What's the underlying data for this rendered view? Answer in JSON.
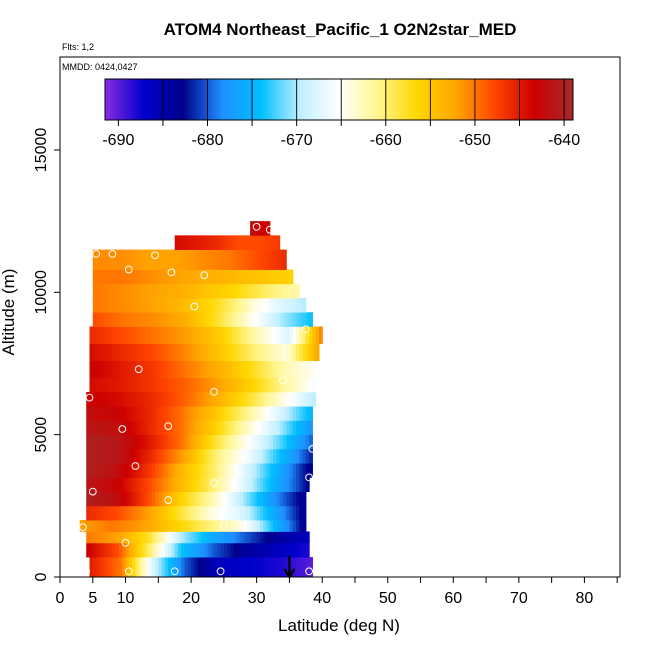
{
  "chart_data": {
    "type": "heatmap",
    "title": "ATOM4 Northeast_Pacific_1 O2N2star_MED",
    "flights_label": "Flts: 1,2",
    "mmdd_label": "MMDD: 0424,0427",
    "xlabel": "Latitude (deg N)",
    "ylabel": "Altitude (m)",
    "xlim": [
      0,
      85
    ],
    "ylim": [
      0,
      17500
    ],
    "x_ticks": [
      0,
      5,
      10,
      20,
      30,
      40,
      50,
      60,
      70,
      80
    ],
    "x_tick_labels": [
      "0",
      "5",
      "10",
      "20",
      "30",
      "40",
      "50",
      "60",
      "70",
      "80"
    ],
    "x_minor_ticks": [
      15,
      25,
      35,
      45,
      55,
      65,
      75,
      85
    ],
    "y_ticks": [
      0,
      5000,
      10000,
      15000
    ],
    "y_tick_labels": [
      "0",
      "5000",
      "10000",
      "15000"
    ],
    "colorbar": {
      "min": -691.5,
      "max": -639.0,
      "ticks": [
        -690,
        -680,
        -670,
        -660,
        -650,
        -640
      ],
      "tick_labels": [
        "-690",
        "-680",
        "-670",
        "-660",
        "-650",
        "-640"
      ],
      "color_stops": [
        "#8a2be2",
        "#0000cd",
        "#00008b",
        "#1e90ff",
        "#00bfff",
        "#bfefff",
        "#ffffff",
        "#fff68f",
        "#ffd700",
        "#ffa500",
        "#ff4500",
        "#cd0000",
        "#a52a2a"
      ]
    },
    "layers": [
      {
        "z_bottom": 0,
        "z_top": 700,
        "lat_min": 4.5,
        "lat_max": 38.5,
        "values_south_to_north": [
          -645,
          -650,
          -668,
          -680,
          -686,
          -687,
          -688,
          -690
        ]
      },
      {
        "z_bottom": 700,
        "z_top": 1200,
        "lat_min": 4.0,
        "lat_max": 38.0,
        "values_south_to_north": [
          -643,
          -648,
          -660,
          -674,
          -680,
          -684,
          -686,
          -688
        ]
      },
      {
        "z_bottom": 1200,
        "z_top": 1600,
        "lat_min": 4.0,
        "lat_max": 38.0,
        "values_south_to_north": [
          -650,
          -652,
          -658,
          -670,
          -676,
          -680,
          -684,
          -686
        ]
      },
      {
        "z_bottom": 1600,
        "z_top": 2000,
        "lat_min": 3.0,
        "lat_max": 37.5,
        "values_south_to_north": [
          -652,
          -650,
          -652,
          -656,
          -660,
          -664,
          -674,
          -684
        ]
      },
      {
        "z_bottom": 2000,
        "z_top": 2500,
        "lat_min": 4.0,
        "lat_max": 37.5,
        "values_south_to_north": [
          -646,
          -648,
          -652,
          -658,
          -664,
          -668,
          -676,
          -684
        ]
      },
      {
        "z_bottom": 2500,
        "z_top": 3000,
        "lat_min": 4.0,
        "lat_max": 37.5,
        "values_south_to_north": [
          -640,
          -642,
          -648,
          -656,
          -662,
          -670,
          -678,
          -684
        ]
      },
      {
        "z_bottom": 3000,
        "z_top": 3500,
        "lat_min": 4.0,
        "lat_max": 38.0,
        "values_south_to_north": [
          -641,
          -643,
          -648,
          -654,
          -660,
          -668,
          -676,
          -683
        ]
      },
      {
        "z_bottom": 3500,
        "z_top": 4000,
        "lat_min": 4.0,
        "lat_max": 38.5,
        "values_south_to_north": [
          -640,
          -642,
          -647,
          -654,
          -660,
          -668,
          -676,
          -684
        ]
      },
      {
        "z_bottom": 4000,
        "z_top": 4500,
        "lat_min": 4.0,
        "lat_max": 38.5,
        "values_south_to_north": [
          -640,
          -641,
          -646,
          -652,
          -660,
          -666,
          -674,
          -682
        ]
      },
      {
        "z_bottom": 4500,
        "z_top": 5000,
        "lat_min": 4.0,
        "lat_max": 38.5,
        "values_south_to_north": [
          -640,
          -641,
          -645,
          -650,
          -658,
          -665,
          -672,
          -680
        ]
      },
      {
        "z_bottom": 5000,
        "z_top": 5500,
        "lat_min": 4.0,
        "lat_max": 38.5,
        "values_south_to_north": [
          -641,
          -642,
          -646,
          -650,
          -656,
          -663,
          -670,
          -678
        ]
      },
      {
        "z_bottom": 5500,
        "z_top": 6000,
        "lat_min": 4.0,
        "lat_max": 38.5,
        "values_south_to_north": [
          -642,
          -643,
          -646,
          -650,
          -655,
          -661,
          -668,
          -675
        ]
      },
      {
        "z_bottom": 6000,
        "z_top": 6500,
        "lat_min": 4.0,
        "lat_max": 39.0,
        "values_south_to_north": [
          -643,
          -644,
          -646,
          -649,
          -653,
          -658,
          -664,
          -670
        ]
      },
      {
        "z_bottom": 6500,
        "z_top": 7000,
        "lat_min": 4.5,
        "lat_max": 39.0,
        "values_south_to_north": [
          -644,
          -645,
          -647,
          -649,
          -652,
          -656,
          -661,
          -666
        ]
      },
      {
        "z_bottom": 7000,
        "z_top": 7600,
        "lat_min": 4.5,
        "lat_max": 39.0,
        "values_south_to_north": [
          -643,
          -645,
          -647,
          -650,
          -653,
          -657,
          -662,
          -665
        ]
      },
      {
        "z_bottom": 7600,
        "z_top": 8200,
        "lat_min": 4.5,
        "lat_max": 39.5,
        "values_south_to_north": [
          -644,
          -646,
          -648,
          -651,
          -655,
          -660,
          -664,
          -652
        ]
      },
      {
        "z_bottom": 8200,
        "z_top": 8800,
        "lat_min": 4.5,
        "lat_max": 40.0,
        "values_south_to_north": [
          -646,
          -648,
          -650,
          -652,
          -656,
          -662,
          -668,
          -650
        ]
      },
      {
        "z_bottom": 8800,
        "z_top": 9300,
        "lat_min": 5.0,
        "lat_max": 38.5,
        "values_south_to_north": [
          -648,
          -650,
          -651,
          -653,
          -658,
          -664,
          -670,
          -674
        ]
      },
      {
        "z_bottom": 9300,
        "z_top": 9800,
        "lat_min": 5.0,
        "lat_max": 37.5,
        "values_south_to_north": [
          -650,
          -651,
          -652,
          -654,
          -657,
          -662,
          -667,
          -670
        ]
      },
      {
        "z_bottom": 9800,
        "z_top": 10300,
        "lat_min": 5.0,
        "lat_max": 36.5,
        "values_south_to_north": [
          -650,
          -651,
          -652,
          -653,
          -655,
          -657,
          -660,
          -662
        ]
      },
      {
        "z_bottom": 10300,
        "z_top": 10800,
        "lat_min": 5.0,
        "lat_max": 35.5,
        "values_south_to_north": [
          -650,
          -650,
          -651,
          -652,
          -653,
          -654,
          -655,
          -656
        ]
      },
      {
        "z_bottom": 10800,
        "z_top": 11500,
        "lat_min": 5.0,
        "lat_max": 34.5,
        "values_south_to_north": [
          -651,
          -651,
          -652,
          -652,
          -651,
          -650,
          -648,
          -646
        ]
      },
      {
        "z_bottom": 11500,
        "z_top": 12000,
        "lat_min": 17.5,
        "lat_max": 33.5,
        "values_south_to_north": [
          -644,
          -645,
          -646,
          -648,
          -648,
          -647
        ]
      },
      {
        "z_bottom": 12000,
        "z_top": 12500,
        "lat_min": 29.0,
        "lat_max": 32.0,
        "values_south_to_north": [
          -642,
          -644
        ]
      }
    ],
    "sample_points": [
      {
        "lat": 5.5,
        "alt": 11350
      },
      {
        "lat": 8.0,
        "alt": 11350
      },
      {
        "lat": 10.5,
        "alt": 10800
      },
      {
        "lat": 14.5,
        "alt": 11300
      },
      {
        "lat": 17.0,
        "alt": 10700
      },
      {
        "lat": 22.0,
        "alt": 10600
      },
      {
        "lat": 20.5,
        "alt": 9500
      },
      {
        "lat": 30.0,
        "alt": 9500
      },
      {
        "lat": 30.0,
        "alt": 12300
      },
      {
        "lat": 32.0,
        "alt": 12200
      },
      {
        "lat": 37.5,
        "alt": 8700
      },
      {
        "lat": 12.0,
        "alt": 7300
      },
      {
        "lat": 23.5,
        "alt": 6500
      },
      {
        "lat": 34.0,
        "alt": 6900
      },
      {
        "lat": 34.5,
        "alt": 6200
      },
      {
        "lat": 4.5,
        "alt": 6300
      },
      {
        "lat": 9.5,
        "alt": 5200
      },
      {
        "lat": 16.5,
        "alt": 5300
      },
      {
        "lat": 38.5,
        "alt": 4500
      },
      {
        "lat": 11.5,
        "alt": 3900
      },
      {
        "lat": 23.5,
        "alt": 3300
      },
      {
        "lat": 38.0,
        "alt": 3500
      },
      {
        "lat": 5.0,
        "alt": 3000
      },
      {
        "lat": 16.5,
        "alt": 2700
      },
      {
        "lat": 25.0,
        "alt": 1800
      },
      {
        "lat": 3.5,
        "alt": 1750
      },
      {
        "lat": 10.0,
        "alt": 1200
      },
      {
        "lat": 4.0,
        "alt": 200
      },
      {
        "lat": 10.5,
        "alt": 200
      },
      {
        "lat": 17.5,
        "alt": 200
      },
      {
        "lat": 24.5,
        "alt": 200
      },
      {
        "lat": 38.0,
        "alt": 200
      }
    ],
    "arrow_marker": {
      "lat": 35.0,
      "from_alt": 750,
      "to_alt": 0
    }
  }
}
